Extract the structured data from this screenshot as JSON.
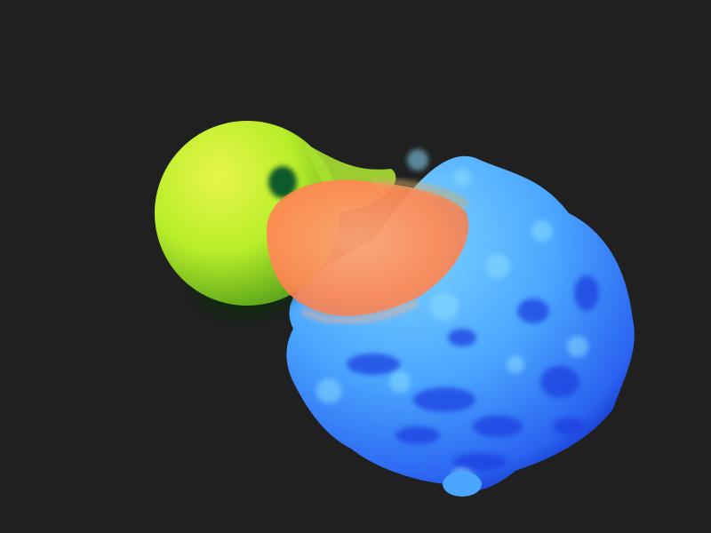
{
  "scene": {
    "background_color": "#202020",
    "objects": [
      {
        "name": "sphere",
        "colors": {
          "light": "#e8f54a",
          "mid": "#b8ee2a",
          "dark": "#5aa41a",
          "shadow": "#0e2a10"
        }
      },
      {
        "name": "membrane",
        "colors": {
          "light": "#ffa777",
          "mid": "#ff8a55",
          "edge": "#d6ad6c"
        }
      },
      {
        "name": "rough-blob",
        "colors": {
          "light": "#7fd6ff",
          "mid": "#4aa6ff",
          "dark": "#1f3fe0",
          "deep": "#0a1fb8"
        }
      }
    ]
  }
}
